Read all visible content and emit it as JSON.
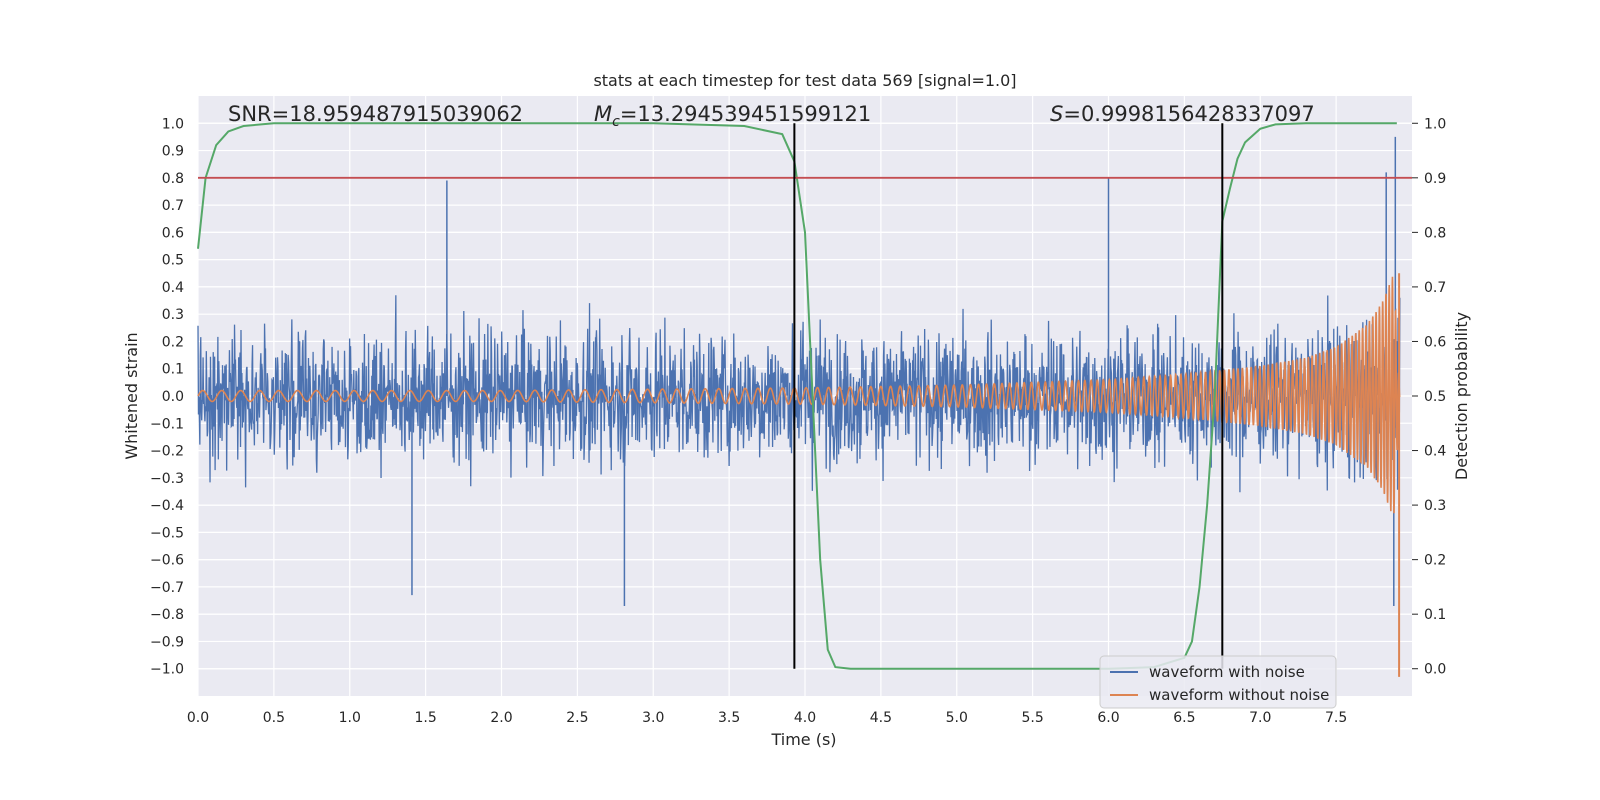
{
  "chart_data": {
    "type": "line",
    "title": "stats at each timestep for test data 569 [signal=1.0]",
    "xlabel": "Time (s)",
    "ylabel": "Whitened strain",
    "y2label": "Detection probability",
    "xlim": [
      0.0,
      8.0
    ],
    "ylim": [
      -1.1,
      1.1
    ],
    "y2lim": [
      -0.05,
      1.05
    ],
    "x_ticks": [
      0.0,
      0.5,
      1.0,
      1.5,
      2.0,
      2.5,
      3.0,
      3.5,
      4.0,
      4.5,
      5.0,
      5.5,
      6.0,
      6.5,
      7.0,
      7.5
    ],
    "x_tick_labels": [
      "0.0",
      "0.5",
      "1.0",
      "1.5",
      "2.0",
      "2.5",
      "3.0",
      "3.5",
      "4.0",
      "4.5",
      "5.0",
      "5.5",
      "6.0",
      "6.5",
      "7.0",
      "7.5"
    ],
    "y_ticks": [
      1.0,
      0.9,
      0.8,
      0.7,
      0.6,
      0.5,
      0.4,
      0.3,
      0.2,
      0.1,
      0.0,
      -0.1,
      -0.2,
      -0.3,
      -0.4,
      -0.5,
      -0.6,
      -0.7,
      -0.8,
      -0.9,
      -1.0
    ],
    "y_tick_labels": [
      "1.0",
      "0.9",
      "0.8",
      "0.7",
      "0.6",
      "0.5",
      "0.4",
      "0.3",
      "0.2",
      "0.1",
      "0.0",
      "−0.1",
      "−0.2",
      "−0.3",
      "−0.4",
      "−0.5",
      "−0.6",
      "−0.7",
      "−0.8",
      "−0.9",
      "−1.0"
    ],
    "y2_ticks": [
      1.0,
      0.9,
      0.8,
      0.7,
      0.6,
      0.5,
      0.4,
      0.3,
      0.2,
      0.1,
      0.0
    ],
    "y2_tick_labels": [
      "1.0",
      "0.9",
      "0.8",
      "0.7",
      "0.6",
      "0.5",
      "0.4",
      "0.3",
      "0.2",
      "0.1",
      "0.0"
    ],
    "grid": true,
    "annotations": {
      "snr": "SNR=18.959487915039062",
      "mc_symbol": "M",
      "mc_subscript": "c",
      "mc_value": "=13.294539451599121",
      "s_symbol": "S",
      "s_value": "=0.9998156428337097"
    },
    "threshold_y2": 0.9,
    "vertical_lines_x": [
      3.93,
      6.75
    ],
    "series": [
      {
        "name": "waveform with noise",
        "color": "#4c72b0",
        "axis": "left",
        "kind": "noise",
        "envelope_x": [
          0.0,
          1.0,
          2.0,
          3.0,
          4.0,
          5.0,
          6.0,
          7.0,
          7.5,
          7.9
        ],
        "envelope_y": [
          0.4,
          0.4,
          0.4,
          0.4,
          0.4,
          0.4,
          0.4,
          0.4,
          0.45,
          0.55
        ],
        "spikes": [
          [
            1.64,
            0.79
          ],
          [
            1.41,
            -0.73
          ],
          [
            2.81,
            -0.77
          ],
          [
            6.0,
            0.8
          ],
          [
            7.83,
            0.82
          ],
          [
            7.89,
            0.95
          ],
          [
            7.88,
            -0.77
          ]
        ]
      },
      {
        "name": "waveform without noise",
        "color": "#dd8452",
        "axis": "left",
        "kind": "chirp",
        "amplitude_x": [
          0.0,
          2.0,
          4.0,
          5.0,
          6.0,
          6.5,
          7.0,
          7.3,
          7.5,
          7.7,
          7.8,
          7.88,
          7.92
        ],
        "amplitude_y": [
          0.02,
          0.02,
          0.03,
          0.04,
          0.06,
          0.08,
          0.11,
          0.14,
          0.18,
          0.26,
          0.34,
          0.45,
          0.0
        ],
        "freq_start": 20,
        "freq_end": 120
      },
      {
        "name": "detection probability",
        "color": "#55a868",
        "axis": "right",
        "kind": "line",
        "x": [
          0.0,
          0.05,
          0.12,
          0.2,
          0.3,
          0.5,
          1.0,
          2.0,
          3.0,
          3.6,
          3.85,
          3.93,
          4.0,
          4.05,
          4.1,
          4.15,
          4.2,
          4.3,
          5.0,
          6.0,
          6.3,
          6.5,
          6.55,
          6.6,
          6.65,
          6.7,
          6.75,
          6.8,
          6.85,
          6.9,
          7.0,
          7.1,
          7.3,
          7.9
        ],
        "y": [
          0.77,
          0.9,
          0.96,
          0.985,
          0.995,
          1.0,
          1.0,
          1.0,
          1.0,
          0.995,
          0.98,
          0.93,
          0.8,
          0.5,
          0.2,
          0.035,
          0.003,
          0.0,
          0.0,
          0.0,
          0.003,
          0.02,
          0.05,
          0.15,
          0.3,
          0.5,
          0.82,
          0.88,
          0.935,
          0.965,
          0.99,
          0.998,
          1.0,
          1.0
        ]
      },
      {
        "name": "threshold",
        "color": "#c44e52",
        "axis": "right",
        "kind": "hline",
        "value": 0.9
      }
    ],
    "legend": {
      "position": "lower-right",
      "entries": [
        "waveform with noise",
        "waveform without noise"
      ]
    },
    "colors": {
      "background": "#eaeaf2",
      "grid": "#ffffff",
      "vline": "#000000"
    }
  }
}
